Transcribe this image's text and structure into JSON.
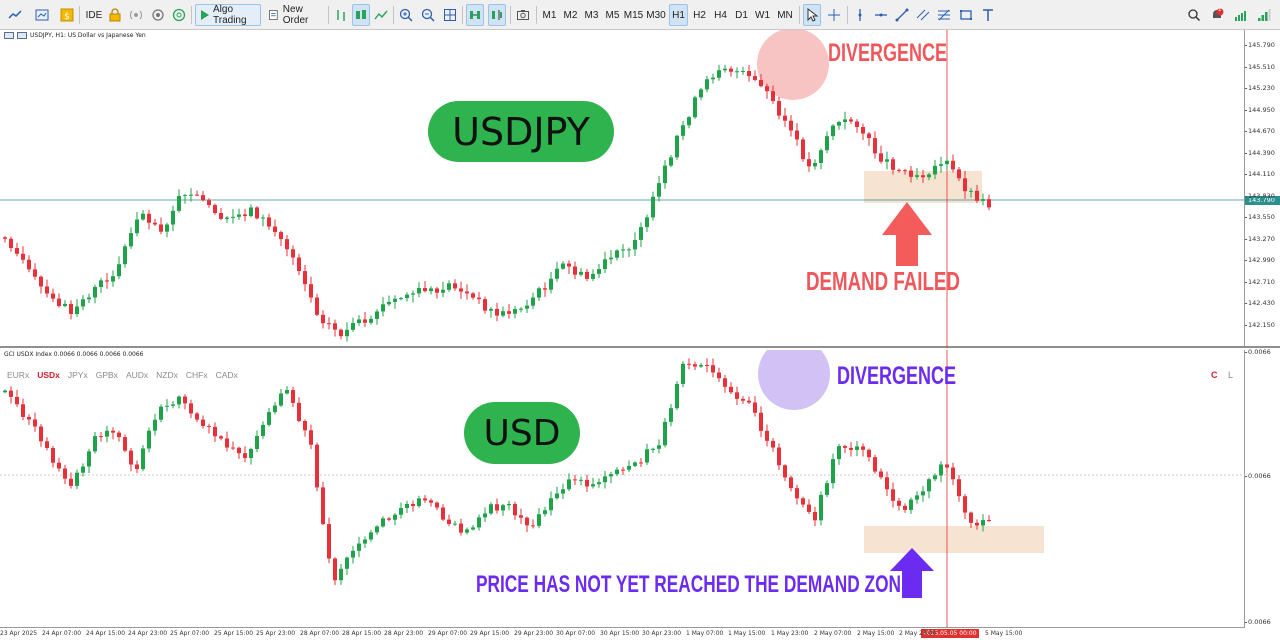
{
  "toolbar": {
    "algo_trading_label": "Algo Trading",
    "new_order_label": "New Order",
    "ide_label": "IDE",
    "timeframes": [
      "M1",
      "M2",
      "M3",
      "M5",
      "M15",
      "M30",
      "H1",
      "H2",
      "H4",
      "D1",
      "W1",
      "MN"
    ],
    "active_timeframe": "H1",
    "notification_count": "1",
    "icons": [
      "chart-type-icon",
      "template-icon",
      "market-watch-icon",
      "lock-icon",
      "signal-icon",
      "one-click-icon",
      "crosshair-icon",
      "line-icon",
      "trendline-icon",
      "fibo-icon",
      "rectangle-icon",
      "text-icon",
      "search-icon",
      "notification-icon",
      "wifi-icon"
    ]
  },
  "pane1": {
    "title": "USDJPY, H1:  US Dollar vs Japanese Yen",
    "y_labels": [
      "145.790",
      "145.510",
      "145.230",
      "144.950",
      "144.670",
      "144.390",
      "144.110",
      "143.830",
      "143.550",
      "143.270",
      "142.990",
      "142.710",
      "142.430",
      "142.150"
    ],
    "current_price": "143.790",
    "label": "USDJPY",
    "annotation_divergence": "DIVERGENCE",
    "annotation_demand_failed": "DEMAND FAILED",
    "colors": {
      "bull": "#1fa34a",
      "bear": "#e8303a",
      "price_line": "#2a8f8f",
      "divergence_circle": "#f6b9b9",
      "demand_zone": "#f6e3d2",
      "arrow": "#f45c5c"
    }
  },
  "pane2": {
    "title": "GCI USDX Index 0.0066 0.0066 0.0066 0.0066",
    "currencies": [
      "EURx",
      "USDx",
      "JPYx",
      "GPBx",
      "AUDx",
      "NZDx",
      "CHFx",
      "CADx"
    ],
    "active_currency": "USDx",
    "corner_c": "C",
    "corner_l": "L",
    "y_labels": [
      "0.0066",
      "0.0066",
      "0.0066"
    ],
    "label": "USD",
    "annotation_divergence": "DIVERGENCE",
    "annotation_demand": "PRICE HAS NOT YET REACHED THE DEMAND ZONE.",
    "colors": {
      "bull": "#1fa34a",
      "bear": "#e8303a",
      "divergence_circle": "#c9b6f2",
      "demand_zone": "#f6e3d2",
      "arrow": "#6b2bf0"
    }
  },
  "xaxis": {
    "labels": [
      "23 Apr 2025",
      "24 Apr 07:00",
      "24 Apr 15:00",
      "24 Apr 23:00",
      "25 Apr 07:00",
      "25 Apr 15:00",
      "25 Apr 23:00",
      "28 Apr 07:00",
      "28 Apr 15:00",
      "28 Apr 23:00",
      "29 Apr 07:00",
      "29 Apr 15:00",
      "29 Apr 23:00",
      "30 Apr 07:00",
      "30 Apr 15:00",
      "30 Apr 23:00",
      "1 May 07:00",
      "1 May 15:00",
      "1 May 23:00",
      "2 May 07:00",
      "2 May 15:00",
      "2 May 23:00",
      "5 May 15:00"
    ],
    "cursor_time": "2025.05.05 00:00"
  }
}
